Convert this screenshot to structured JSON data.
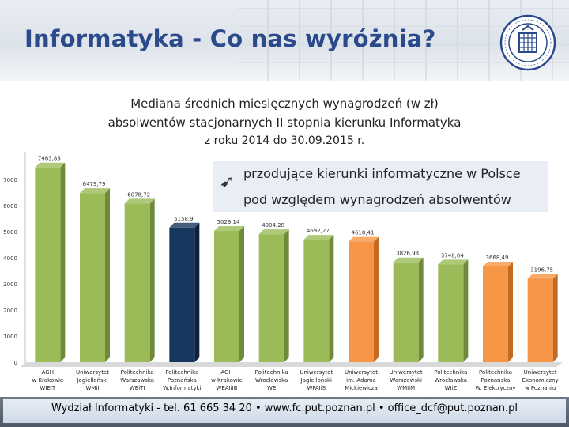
{
  "header": {
    "title": "Informatyka - Co nas wyróżnia?"
  },
  "subtitle": {
    "line1": "Mediana średnich miesięcznych wynagrodzeń (w zł)",
    "line2": "absolwentów stacjonarnych II stopnia kierunku Informatyka",
    "line3": "z roku 2014 do 30.09.2015 r."
  },
  "annotation": {
    "arrow_icon": "arrow-up-left-icon",
    "line1": "przodujące kierunki informatyczne w Polsce",
    "line2": "pod względem wynagrodzeń absolwentów"
  },
  "footer": {
    "text": "Wydział Informatyki - tel. 61 665 34 20 • www.fc.put.poznan.pl • office_dcf@put.poznan.pl"
  },
  "colors": {
    "title": "#2b4a8b",
    "bar_green": "#9bbb59",
    "bar_highlight": "#17375e",
    "bar_orange": "#f79646"
  },
  "chart_data": {
    "type": "bar",
    "title": "",
    "xlabel": "",
    "ylabel": "",
    "ylim": [
      0,
      7000
    ],
    "y_ticks": [
      "0",
      "1000",
      "2000",
      "3000",
      "4000",
      "5000",
      "6000",
      "7000"
    ],
    "grid": false,
    "categories": [
      [
        "AGH",
        "w Krakowie",
        "WIEiT"
      ],
      [
        "Uniwersytet",
        "Jagielloński",
        "WMiI"
      ],
      [
        "Politechnika",
        "Warszawska",
        "WEiTI"
      ],
      [
        "Politechnika",
        "Poznańska",
        "W.Informatyki"
      ],
      [
        "AGH",
        "w Krakowie",
        "WEAIiIB"
      ],
      [
        "Politechnika",
        "Wrocławska",
        "WE"
      ],
      [
        "Uniwersytet",
        "Jagielloński",
        "WFAIiS"
      ],
      [
        "Uniwersytet",
        "im. Adama",
        "Mickiewicza"
      ],
      [
        "Uniwersytet",
        "Warszawski",
        "WMIiM"
      ],
      [
        "Politechnika",
        "Wrocławska",
        "WIiZ"
      ],
      [
        "Politechnika",
        "Poznańska",
        "W. Elektryczny"
      ],
      [
        "Uniwersytet",
        "Ekonomiczny",
        "w Poznaniu"
      ]
    ],
    "values": [
      7463.83,
      6479.79,
      6078.72,
      5158.9,
      5029.14,
      4904.28,
      4692.27,
      4618.41,
      3826.93,
      3748.04,
      3668.49,
      3196.75
    ],
    "value_labels": [
      "7463,83",
      "6479,79",
      "6078,72",
      "5158,9",
      "5029,14",
      "4904,28",
      "4692,27",
      "4618,41",
      "3826,93",
      "3748,04",
      "3668,49",
      "3196,75"
    ],
    "bar_colors": [
      "green",
      "green",
      "green",
      "highlight",
      "green",
      "green",
      "green",
      "orange",
      "green",
      "green",
      "orange",
      "orange"
    ]
  }
}
